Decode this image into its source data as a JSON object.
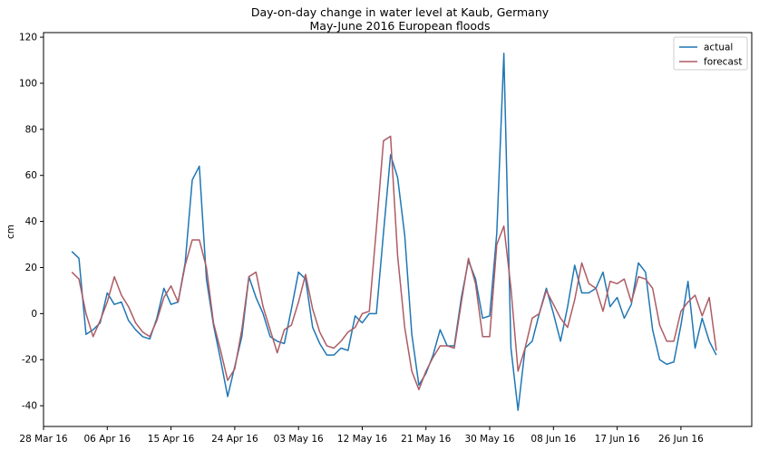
{
  "chart_data": {
    "type": "line",
    "title": "Day-on-day change in water level at Kaub, Germany",
    "subtitle": "May-June 2016 European floods",
    "ylabel": "cm",
    "xlabel": "",
    "xlim": [
      "2016-03-28",
      "2016-07-06"
    ],
    "ylim": [
      -49,
      122
    ],
    "yticks": [
      -40,
      -20,
      0,
      20,
      40,
      60,
      80,
      100,
      120
    ],
    "xticks": [
      {
        "date": "2016-03-28",
        "label": "28 Mar 16"
      },
      {
        "date": "2016-04-06",
        "label": "06 Apr 16"
      },
      {
        "date": "2016-04-15",
        "label": "15 Apr 16"
      },
      {
        "date": "2016-04-24",
        "label": "24 Apr 16"
      },
      {
        "date": "2016-05-03",
        "label": "03 May 16"
      },
      {
        "date": "2016-05-12",
        "label": "12 May 16"
      },
      {
        "date": "2016-05-21",
        "label": "21 May 16"
      },
      {
        "date": "2016-05-30",
        "label": "30 May 16"
      },
      {
        "date": "2016-06-08",
        "label": "08 Jun 16"
      },
      {
        "date": "2016-06-17",
        "label": "17 Jun 16"
      },
      {
        "date": "2016-06-26",
        "label": "26 Jun 16"
      }
    ],
    "grid": false,
    "legend_position": "top-right",
    "x_start": "2016-04-01",
    "series": [
      {
        "name": "actual",
        "color": "#1f77b4",
        "values": [
          27,
          24,
          -9,
          -7,
          -4,
          9,
          4,
          5,
          -3,
          -7,
          -10,
          -11,
          -2,
          11,
          4,
          5,
          22,
          58,
          64,
          15,
          -5,
          -20,
          -36,
          -23,
          -10,
          16,
          7,
          0,
          -10,
          -12,
          -13,
          2,
          18,
          15,
          -6,
          -13,
          -18,
          -18,
          -15,
          -16,
          -1,
          -4,
          0,
          0,
          35,
          69,
          59,
          34,
          -9,
          -31,
          -26,
          -18,
          -7,
          -14,
          -14,
          7,
          23,
          15,
          -2,
          -1,
          35,
          113,
          -15,
          -42,
          -15,
          -12,
          0,
          11,
          0,
          -12,
          3,
          21,
          9,
          9,
          11,
          18,
          3,
          7,
          -2,
          4,
          22,
          18,
          -7,
          -20,
          -22,
          -21,
          -5,
          14,
          -15,
          -2,
          -12,
          -18
        ]
      },
      {
        "name": "forecast",
        "color": "#ad5c64",
        "values": [
          18,
          15,
          0,
          -10,
          -3,
          5,
          16,
          8,
          3,
          -4,
          -8,
          -10,
          -3,
          7,
          12,
          5,
          21,
          32,
          32,
          20,
          -4,
          -16,
          -29,
          -24,
          -7,
          16,
          18,
          3,
          -7,
          -17,
          -7,
          -5,
          5,
          17,
          2,
          -8,
          -14,
          -15,
          -12,
          -8,
          -6,
          0,
          1,
          37,
          75,
          77,
          25,
          -6,
          -25,
          -33,
          -25,
          -19,
          -14,
          -14,
          -15,
          5,
          24,
          13,
          -10,
          -10,
          30,
          38,
          11,
          -25,
          -15,
          -2,
          0,
          10,
          4,
          -2,
          -6,
          6,
          22,
          13,
          11,
          1,
          14,
          13,
          15,
          5,
          16,
          15,
          11,
          -5,
          -12,
          -12,
          1,
          5,
          8,
          -1,
          7,
          -16
        ]
      }
    ]
  }
}
